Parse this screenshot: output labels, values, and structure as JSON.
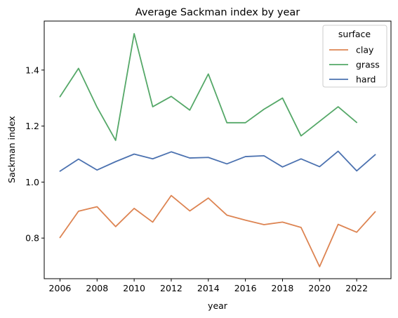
{
  "chart_data": {
    "type": "line",
    "title": "Average Sackman index by year",
    "xlabel": "year",
    "ylabel": "Sackman index",
    "x": [
      2006,
      2007,
      2008,
      2009,
      2010,
      2011,
      2012,
      2013,
      2014,
      2015,
      2016,
      2017,
      2018,
      2019,
      2020,
      2021,
      2022,
      2023
    ],
    "xlim": [
      2005.15,
      2023.85
    ],
    "ylim": [
      0.655,
      1.575
    ],
    "xticks": [
      "2006",
      "2008",
      "2010",
      "2012",
      "2014",
      "2016",
      "2018",
      "2020",
      "2022"
    ],
    "yticks": [
      "0.8",
      "1.0",
      "1.2",
      "1.4"
    ],
    "grid": false,
    "legend": {
      "title": "surface",
      "placement": "top-right"
    },
    "series": [
      {
        "name": "clay",
        "color": "#dd8452",
        "values": [
          0.802,
          0.896,
          0.912,
          0.841,
          0.906,
          0.857,
          0.952,
          0.897,
          0.943,
          0.882,
          0.864,
          0.848,
          0.857,
          0.838,
          0.698,
          0.849,
          0.821,
          0.894
        ]
      },
      {
        "name": "grass",
        "color": "#55a868",
        "values": [
          1.305,
          1.406,
          1.267,
          1.149,
          1.53,
          1.269,
          1.306,
          1.257,
          1.386,
          1.212,
          1.212,
          1.26,
          1.3,
          1.165,
          1.217,
          1.269,
          1.213,
          null
        ]
      },
      {
        "name": "hard",
        "color": "#4c72b0",
        "values": [
          1.039,
          1.082,
          1.043,
          1.073,
          1.1,
          1.083,
          1.108,
          1.086,
          1.088,
          1.065,
          1.091,
          1.094,
          1.054,
          1.083,
          1.055,
          1.11,
          1.04,
          1.098
        ]
      }
    ]
  }
}
